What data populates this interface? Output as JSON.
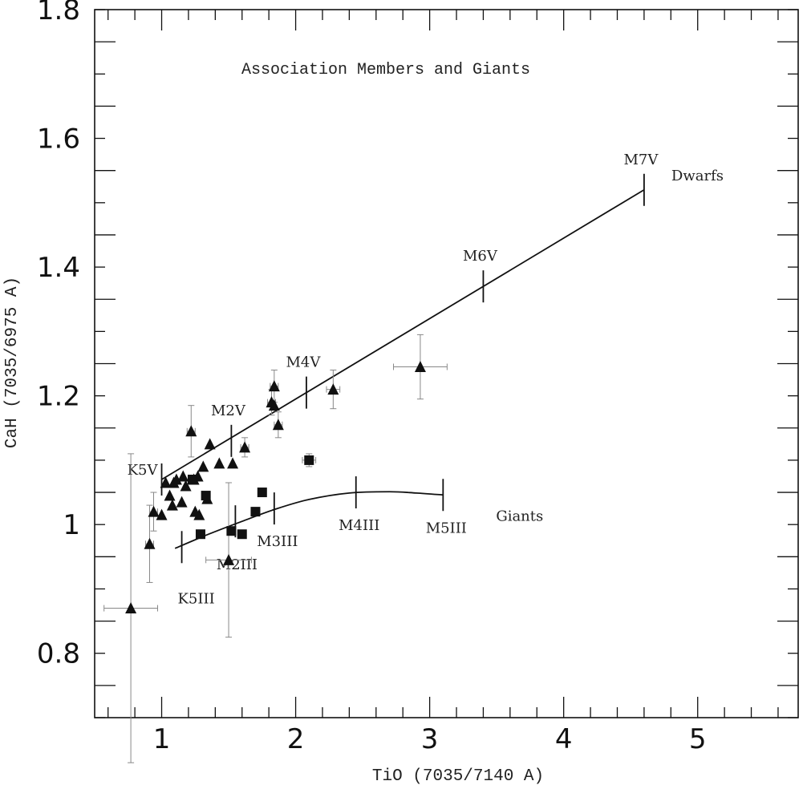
{
  "chart_data": {
    "type": "scatter",
    "title": "Association Members and Giants",
    "xlabel": "TiO (7035/7140 A)",
    "ylabel": "CaH (7035/6975 A)",
    "xlim": [
      0.5,
      5.75
    ],
    "ylim": [
      0.7,
      1.8
    ],
    "x_ticks": [
      "1",
      "2",
      "3",
      "4",
      "5"
    ],
    "y_ticks": [
      "0.8",
      "1",
      "1.2",
      "1.4",
      "1.6",
      "1.8"
    ],
    "colors": {
      "ink": "#111111",
      "errorbar": "#888888"
    },
    "series": [
      {
        "name": "",
        "marker": "triangle",
        "points": [
          {
            "x": 0.77,
            "y": 0.87,
            "xerr": 0.2,
            "yerr": 0.24
          },
          {
            "x": 0.91,
            "y": 0.97,
            "xerr": 0.03,
            "yerr": 0.06
          },
          {
            "x": 0.94,
            "y": 1.02,
            "xerr": 0.03,
            "yerr": 0.03
          },
          {
            "x": 1.0,
            "y": 1.015
          },
          {
            "x": 1.03,
            "y": 1.065
          },
          {
            "x": 1.06,
            "y": 1.045
          },
          {
            "x": 1.08,
            "y": 1.03
          },
          {
            "x": 1.09,
            "y": 1.065
          },
          {
            "x": 1.11,
            "y": 1.07
          },
          {
            "x": 1.15,
            "y": 1.035
          },
          {
            "x": 1.16,
            "y": 1.075
          },
          {
            "x": 1.18,
            "y": 1.06
          },
          {
            "x": 1.22,
            "y": 1.145,
            "xerr": 0.03,
            "yerr": 0.04
          },
          {
            "x": 1.24,
            "y": 1.07
          },
          {
            "x": 1.25,
            "y": 1.02
          },
          {
            "x": 1.27,
            "y": 1.075
          },
          {
            "x": 1.28,
            "y": 1.015
          },
          {
            "x": 1.31,
            "y": 1.09
          },
          {
            "x": 1.34,
            "y": 1.04
          },
          {
            "x": 1.36,
            "y": 1.125
          },
          {
            "x": 1.43,
            "y": 1.095
          },
          {
            "x": 1.5,
            "y": 0.945,
            "xerr": 0.17,
            "yerr": 0.12
          },
          {
            "x": 1.53,
            "y": 1.095
          },
          {
            "x": 1.62,
            "y": 1.12,
            "xerr": 0.03,
            "yerr": 0.015
          },
          {
            "x": 1.82,
            "y": 1.19,
            "xerr": 0.03,
            "yerr": 0.02
          },
          {
            "x": 1.84,
            "y": 1.185
          },
          {
            "x": 1.84,
            "y": 1.215,
            "xerr": 0.03,
            "yerr": 0.025
          },
          {
            "x": 1.87,
            "y": 1.155,
            "xerr": 0.03,
            "yerr": 0.02
          },
          {
            "x": 2.28,
            "y": 1.21,
            "xerr": 0.05,
            "yerr": 0.03
          },
          {
            "x": 2.93,
            "y": 1.245,
            "xerr": 0.2,
            "yerr": 0.05
          }
        ]
      },
      {
        "name": "",
        "marker": "square",
        "points": [
          {
            "x": 1.23,
            "y": 1.07
          },
          {
            "x": 1.29,
            "y": 0.985
          },
          {
            "x": 1.33,
            "y": 1.045
          },
          {
            "x": 1.52,
            "y": 0.99
          },
          {
            "x": 1.6,
            "y": 0.985
          },
          {
            "x": 1.7,
            "y": 1.02
          },
          {
            "x": 1.75,
            "y": 1.05
          },
          {
            "x": 2.1,
            "y": 1.1,
            "xerr": 0.05,
            "yerr": 0.01
          }
        ]
      }
    ],
    "sequences": [
      {
        "name": "Dwarfs",
        "line": [
          [
            1.0,
            1.07
          ],
          [
            4.6,
            1.52
          ]
        ],
        "marks": [
          {
            "label": "K5V",
            "x": 1.0,
            "y": 1.07
          },
          {
            "label": "M2V",
            "x": 1.52,
            "y": 1.13
          },
          {
            "label": "M4V",
            "x": 2.08,
            "y": 1.205
          },
          {
            "label": "M6V",
            "x": 3.4,
            "y": 1.37
          },
          {
            "label": "M7V",
            "x": 4.6,
            "y": 1.52
          }
        ]
      },
      {
        "name": "Giants",
        "line": [
          [
            1.1,
            0.963
          ],
          [
            1.35,
            0.985
          ],
          [
            1.6,
            1.005
          ],
          [
            1.85,
            1.024
          ],
          [
            2.1,
            1.039
          ],
          [
            2.4,
            1.049
          ],
          [
            2.7,
            1.051
          ],
          [
            2.9,
            1.049
          ],
          [
            3.1,
            1.046
          ]
        ],
        "marks": [
          {
            "label": "K5III",
            "x": 1.15,
            "y": 0.965
          },
          {
            "label": "M2III",
            "x": 1.55,
            "y": 1.005
          },
          {
            "label": "M3III",
            "x": 1.84,
            "y": 1.025
          },
          {
            "label": "M4III",
            "x": 2.45,
            "y": 1.05
          },
          {
            "label": "M5III",
            "x": 3.1,
            "y": 1.046
          }
        ]
      }
    ]
  }
}
